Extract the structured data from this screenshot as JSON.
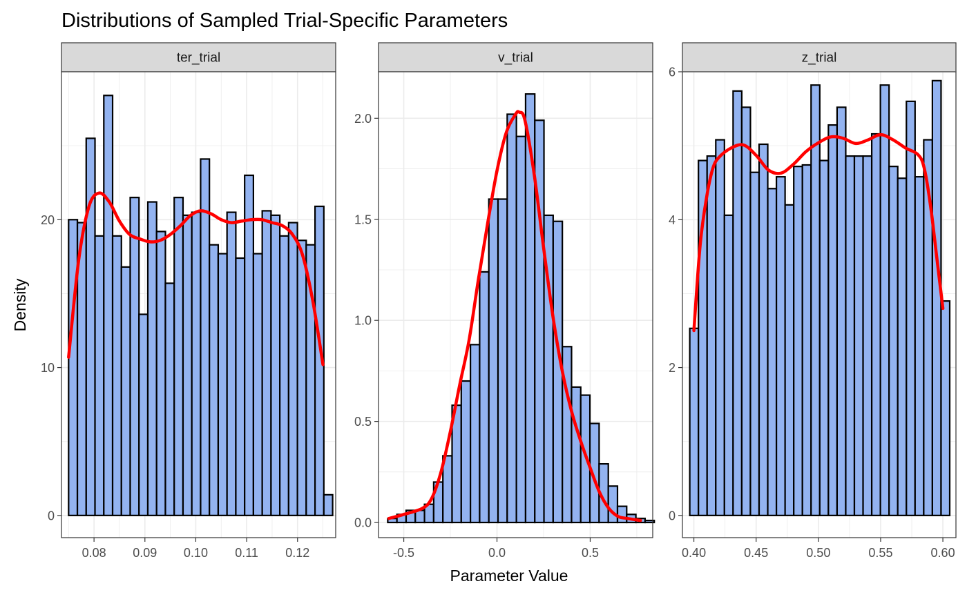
{
  "chart_data": {
    "type": "histogram",
    "title": "Distributions of Sampled Trial-Specific Parameters",
    "xlabel": "Parameter Value",
    "ylabel": "Density",
    "colors": {
      "bar_fill": "#93b3f0",
      "bar_stroke": "#000000",
      "density_line": "#ff0000",
      "strip_fill": "#d9d9d9",
      "grid": "#ebebeb"
    },
    "panels": [
      {
        "name": "ter_trial",
        "xlim": [
          0.0736,
          0.1275
        ],
        "ylim": [
          -1.5,
          30.0
        ],
        "xticks": [
          0.08,
          0.09,
          0.1,
          0.11,
          0.12
        ],
        "xtick_labels": [
          "0.08",
          "0.09",
          "0.10",
          "0.11",
          "0.12"
        ],
        "yticks": [
          0,
          10,
          20
        ],
        "ytick_labels": [
          "0",
          "10",
          "20"
        ],
        "bins": {
          "start": 0.075,
          "width": 0.00173
        },
        "bar_values": [
          20.0,
          19.8,
          25.5,
          18.9,
          28.4,
          18.9,
          16.8,
          21.5,
          13.6,
          21.2,
          19.2,
          15.7,
          21.5,
          20.3,
          20.5,
          24.1,
          18.3,
          17.7,
          20.5,
          17.4,
          23.0,
          17.7,
          20.6,
          20.3,
          18.9,
          19.8,
          18.6,
          18.3,
          20.9,
          1.4
        ],
        "density": {
          "x": [
            0.075,
            0.077,
            0.079,
            0.081,
            0.083,
            0.085,
            0.087,
            0.089,
            0.091,
            0.093,
            0.095,
            0.097,
            0.099,
            0.101,
            0.103,
            0.105,
            0.107,
            0.109,
            0.111,
            0.113,
            0.115,
            0.117,
            0.119,
            0.121,
            0.123,
            0.125
          ],
          "y": [
            10.7,
            17.3,
            20.9,
            21.8,
            21.2,
            19.9,
            19.0,
            18.7,
            18.5,
            18.6,
            19.0,
            19.6,
            20.3,
            20.6,
            20.4,
            20.0,
            19.8,
            19.9,
            20.0,
            20.0,
            19.8,
            19.6,
            19.0,
            17.6,
            14.5,
            10.2
          ]
        }
      },
      {
        "name": "v_trial",
        "xlim": [
          -0.6355,
          0.8355
        ],
        "ylim": [
          -0.075,
          2.23
        ],
        "xticks": [
          -0.5,
          0.0,
          0.5
        ],
        "xtick_labels": [
          "-0.5",
          "0.0",
          "0.5"
        ],
        "yticks": [
          0.0,
          0.5,
          1.0,
          1.5,
          2.0
        ],
        "ytick_labels": [
          "0.0",
          "0.5",
          "1.0",
          "1.5",
          "2.0"
        ],
        "bins": {
          "start": -0.586,
          "width": 0.0493
        },
        "bar_values": [
          0.02,
          0.04,
          0.06,
          0.06,
          0.09,
          0.2,
          0.33,
          0.58,
          0.7,
          0.88,
          1.24,
          1.6,
          1.6,
          2.02,
          1.91,
          2.12,
          1.99,
          1.52,
          1.49,
          0.87,
          0.67,
          0.63,
          0.49,
          0.29,
          0.18,
          0.08,
          0.04,
          0.02,
          0.01
        ],
        "density": {
          "x": [
            -0.58,
            -0.5,
            -0.4,
            -0.35,
            -0.3,
            -0.25,
            -0.2,
            -0.15,
            -0.1,
            -0.05,
            0.0,
            0.05,
            0.1,
            0.12,
            0.15,
            0.2,
            0.25,
            0.3,
            0.35,
            0.4,
            0.45,
            0.5,
            0.55,
            0.6,
            0.65,
            0.7,
            0.77
          ],
          "y": [
            0.02,
            0.04,
            0.07,
            0.12,
            0.25,
            0.45,
            0.68,
            0.9,
            1.2,
            1.48,
            1.74,
            1.93,
            2.02,
            2.03,
            1.99,
            1.72,
            1.36,
            1.02,
            0.75,
            0.55,
            0.4,
            0.27,
            0.15,
            0.07,
            0.03,
            0.02,
            0.01
          ]
        }
      },
      {
        "name": "z_trial",
        "xlim": [
          0.3908,
          0.6105
        ],
        "ylim": [
          -0.3,
          6.0
        ],
        "xticks": [
          0.4,
          0.45,
          0.5,
          0.55,
          0.6
        ],
        "xtick_labels": [
          "0.40",
          "0.45",
          "0.50",
          "0.55",
          "0.60"
        ],
        "yticks": [
          0,
          2,
          4,
          6
        ],
        "ytick_labels": [
          "0",
          "2",
          "4",
          "6"
        ],
        "bins": {
          "start": 0.3967,
          "width": 0.00696
        },
        "bar_values": [
          2.53,
          4.8,
          4.86,
          5.08,
          4.06,
          5.74,
          5.52,
          4.64,
          5.02,
          4.42,
          4.58,
          4.2,
          4.72,
          4.74,
          5.82,
          4.8,
          5.28,
          5.52,
          4.86,
          4.86,
          4.86,
          5.16,
          5.82,
          4.72,
          4.56,
          5.6,
          4.58,
          5.08,
          5.88,
          2.9
        ],
        "density": {
          "x": [
            0.4,
            0.405,
            0.41,
            0.415,
            0.42,
            0.43,
            0.44,
            0.45,
            0.46,
            0.47,
            0.48,
            0.49,
            0.5,
            0.51,
            0.52,
            0.53,
            0.54,
            0.55,
            0.56,
            0.57,
            0.58,
            0.585,
            0.59,
            0.595,
            0.6
          ],
          "y": [
            2.5,
            3.65,
            4.28,
            4.68,
            4.84,
            4.97,
            5.01,
            4.87,
            4.67,
            4.63,
            4.75,
            4.92,
            5.04,
            5.12,
            5.1,
            5.03,
            5.08,
            5.15,
            5.08,
            4.97,
            4.88,
            4.7,
            4.2,
            3.5,
            2.8
          ]
        }
      }
    ]
  }
}
